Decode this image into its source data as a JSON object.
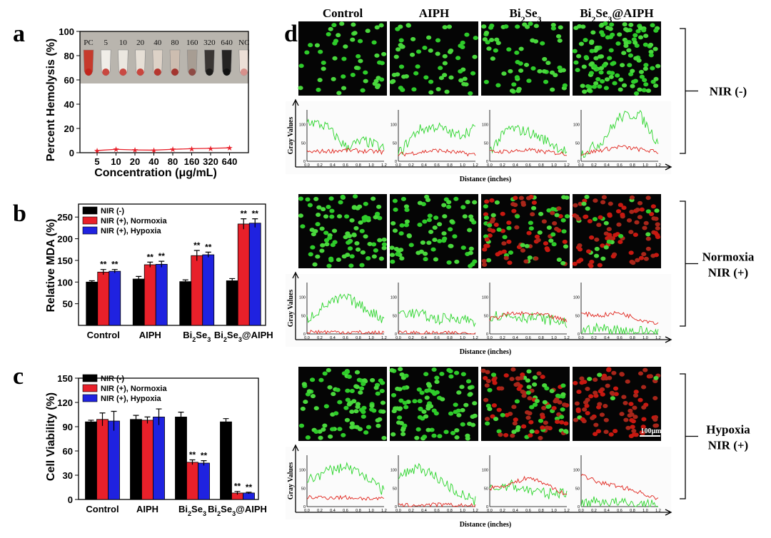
{
  "panels": {
    "a": "a",
    "b": "b",
    "c": "c",
    "d": "d"
  },
  "chart_data": [
    {
      "id": "a",
      "type": "line",
      "ylabel": "Percent Hemolysis (%)",
      "xlabel": "Concentration (μg/mL)",
      "categories": [
        "5",
        "10",
        "20",
        "40",
        "80",
        "160",
        "320",
        "640"
      ],
      "yticks": [
        "0",
        "20",
        "40",
        "60",
        "80",
        "100"
      ],
      "ylim": [
        0,
        100
      ],
      "series": [
        {
          "values": [
            1.8,
            2.8,
            2.3,
            2.1,
            2.8,
            3.3,
            3.6,
            4.0
          ],
          "color": "#e8202a"
        }
      ],
      "inset_labels": [
        "PC",
        "5",
        "10",
        "20",
        "40",
        "80",
        "160",
        "320",
        "640",
        "NC"
      ]
    },
    {
      "id": "b",
      "type": "bar",
      "ylabel": "Relative MDA (%)",
      "yticks": [
        "50",
        "100",
        "150",
        "200",
        "250"
      ],
      "ylim": [
        0,
        280
      ],
      "categories": [
        "Control",
        "AIPH",
        "Bi2Se3",
        "Bi2Se3@AIPH"
      ],
      "series": [
        {
          "name": "NIR (-)",
          "color": "#000000",
          "values": [
            100,
            107,
            101,
            103
          ],
          "err": [
            3,
            6,
            4,
            5
          ],
          "sig": [
            "",
            "",
            "",
            ""
          ]
        },
        {
          "name": "NIR (+), Normoxia",
          "color": "#e8202a",
          "values": [
            123,
            140,
            161,
            234
          ],
          "err": [
            6,
            6,
            12,
            12
          ],
          "sig": [
            "**",
            "**",
            "**",
            "**"
          ]
        },
        {
          "name": "NIR (+), Hypoxia",
          "color": "#1f22e0",
          "values": [
            125,
            141,
            163,
            236
          ],
          "err": [
            4,
            7,
            6,
            10
          ],
          "sig": [
            "**",
            "**",
            "**",
            "**"
          ]
        }
      ]
    },
    {
      "id": "c",
      "type": "bar",
      "ylabel": "Cell Viability (%)",
      "yticks": [
        "0",
        "30",
        "60",
        "90",
        "120",
        "150"
      ],
      "ylim": [
        0,
        150
      ],
      "categories": [
        "Control",
        "AIPH",
        "Bi2Se3",
        "Bi2Se3@AIPH"
      ],
      "series": [
        {
          "name": "NIR (-)",
          "color": "#000000",
          "values": [
            96,
            99,
            102,
            96
          ],
          "err": [
            2,
            5,
            6,
            4
          ],
          "sig": [
            "",
            "",
            "",
            ""
          ]
        },
        {
          "name": "NIR (+), Normoxia",
          "color": "#e8202a",
          "values": [
            99,
            98,
            46,
            8
          ],
          "err": [
            8,
            4,
            3,
            2
          ],
          "sig": [
            "",
            "",
            "**",
            "**"
          ]
        },
        {
          "name": "NIR (+), Hypoxia",
          "color": "#1f22e0",
          "values": [
            97,
            102,
            45,
            8
          ],
          "err": [
            12,
            10,
            3,
            1
          ],
          "sig": [
            "",
            "",
            "**",
            "**"
          ]
        }
      ]
    },
    {
      "id": "d",
      "type": "line",
      "columns": [
        "Control",
        "AIPH",
        "Bi2Se3",
        "Bi2Se3@AIPH"
      ],
      "rows": [
        "NIR (-)",
        "Normoxia NIR (+)",
        "Hypoxia NIR (+)"
      ],
      "ylabel": "Gray Values",
      "xlabel": "Distance (inches)",
      "xticks": [
        "0.0",
        "0.2",
        "0.4",
        "0.6",
        "0.8",
        "1.0",
        "1.2"
      ],
      "yticks": [
        "0",
        "50",
        "100"
      ],
      "scale_bar": "100μm",
      "profiles": [
        [
          {
            "g": [
              [
                0,
                110
              ],
              [
                0.3,
                95
              ],
              [
                0.6,
                40
              ],
              [
                0.9,
                55
              ],
              [
                1.2,
                35
              ]
            ],
            "r": [
              [
                0,
                25
              ],
              [
                0.6,
                30
              ],
              [
                1.2,
                25
              ]
            ]
          },
          {
            "g": [
              [
                0,
                20
              ],
              [
                0.3,
                85
              ],
              [
                0.6,
                95
              ],
              [
                0.9,
                70
              ],
              [
                1.2,
                90
              ]
            ],
            "r": [
              [
                0,
                18
              ],
              [
                0.6,
                30
              ],
              [
                1.2,
                18
              ]
            ]
          },
          {
            "g": [
              [
                0,
                30
              ],
              [
                0.3,
                90
              ],
              [
                0.6,
                80
              ],
              [
                0.9,
                55
              ],
              [
                1.2,
                25
              ]
            ],
            "r": [
              [
                0,
                25
              ],
              [
                0.6,
                30
              ],
              [
                1.2,
                20
              ]
            ]
          },
          {
            "g": [
              [
                0,
                20
              ],
              [
                0.3,
                50
              ],
              [
                0.6,
                120
              ],
              [
                0.9,
                130
              ],
              [
                1.2,
                50
              ]
            ],
            "r": [
              [
                0,
                20
              ],
              [
                0.6,
                40
              ],
              [
                1.2,
                25
              ]
            ]
          }
        ],
        [
          {
            "g": [
              [
                0,
                40
              ],
              [
                0.3,
                80
              ],
              [
                0.6,
                100
              ],
              [
                0.9,
                70
              ],
              [
                1.2,
                40
              ]
            ],
            "r": [
              [
                0,
                6
              ],
              [
                0.6,
                5
              ],
              [
                1.2,
                2
              ]
            ]
          },
          {
            "g": [
              [
                0,
                60
              ],
              [
                0.3,
                55
              ],
              [
                0.6,
                40
              ],
              [
                0.9,
                45
              ],
              [
                1.2,
                35
              ]
            ],
            "r": [
              [
                0,
                3
              ],
              [
                0.6,
                2
              ],
              [
                1.2,
                2
              ]
            ]
          },
          {
            "g": [
              [
                0,
                50
              ],
              [
                0.3,
                50
              ],
              [
                0.6,
                45
              ],
              [
                0.9,
                40
              ],
              [
                1.2,
                30
              ]
            ],
            "r": [
              [
                0,
                40
              ],
              [
                0.3,
                55
              ],
              [
                0.6,
                55
              ],
              [
                0.9,
                50
              ],
              [
                1.2,
                35
              ]
            ]
          },
          {
            "g": [
              [
                0,
                10
              ],
              [
                0.3,
                15
              ],
              [
                0.6,
                10
              ],
              [
                0.9,
                8
              ],
              [
                1.2,
                5
              ]
            ],
            "r": [
              [
                0,
                55
              ],
              [
                0.3,
                50
              ],
              [
                0.6,
                58
              ],
              [
                0.9,
                40
              ],
              [
                1.2,
                30
              ]
            ]
          }
        ],
        [
          {
            "g": [
              [
                0,
                70
              ],
              [
                0.3,
                95
              ],
              [
                0.6,
                110
              ],
              [
                0.9,
                85
              ],
              [
                1.2,
                40
              ]
            ],
            "r": [
              [
                0,
                25
              ],
              [
                0.6,
                25
              ],
              [
                1.2,
                20
              ]
            ]
          },
          {
            "g": [
              [
                0,
                80
              ],
              [
                0.3,
                110
              ],
              [
                0.6,
                80
              ],
              [
                0.9,
                40
              ],
              [
                1.2,
                15
              ]
            ],
            "r": [
              [
                0,
                3
              ],
              [
                0.6,
                5
              ],
              [
                1.2,
                2
              ]
            ]
          },
          {
            "g": [
              [
                0,
                45
              ],
              [
                0.3,
                60
              ],
              [
                0.6,
                45
              ],
              [
                0.9,
                35
              ],
              [
                1.2,
                40
              ]
            ],
            "r": [
              [
                0,
                50
              ],
              [
                0.3,
                60
              ],
              [
                0.6,
                80
              ],
              [
                0.9,
                60
              ],
              [
                1.2,
                30
              ]
            ]
          },
          {
            "g": [
              [
                0,
                10
              ],
              [
                0.3,
                15
              ],
              [
                0.6,
                10
              ],
              [
                0.9,
                5
              ],
              [
                1.2,
                3
              ]
            ],
            "r": [
              [
                0,
                85
              ],
              [
                0.3,
                65
              ],
              [
                0.6,
                55
              ],
              [
                0.9,
                40
              ],
              [
                1.2,
                20
              ]
            ]
          }
        ]
      ]
    }
  ]
}
